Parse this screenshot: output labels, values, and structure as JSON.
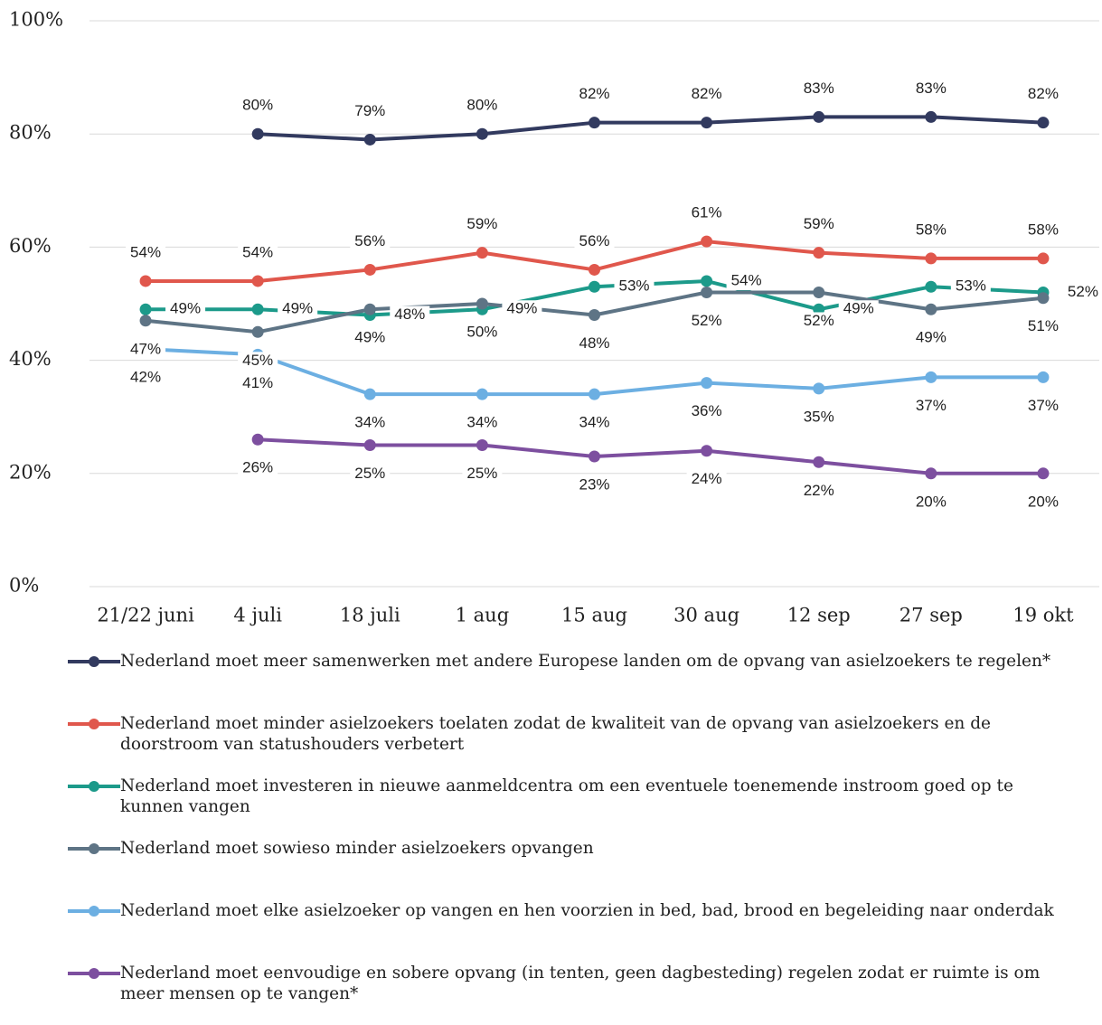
{
  "chart_data": {
    "type": "line",
    "categories": [
      "21/22 juni",
      "4 juli",
      "18 juli",
      "1 aug",
      "15 aug",
      "30 aug",
      "12 sep",
      "27 sep",
      "19 okt"
    ],
    "ylim": [
      0,
      100
    ],
    "yticks": [
      {
        "value": 0,
        "label": "0%"
      },
      {
        "value": 20,
        "label": "20%"
      },
      {
        "value": 40,
        "label": "40%"
      },
      {
        "value": 60,
        "label": "60%"
      },
      {
        "value": 80,
        "label": "80%"
      },
      {
        "value": 100,
        "label": "100%"
      }
    ],
    "grid": true,
    "legend": "bottom",
    "series": [
      {
        "name": "Nederland moet meer samenwerken met andere Europese landen om de opvang van asielzoekers te regelen*",
        "color": "#323a5f",
        "values": [
          null,
          80,
          79,
          80,
          82,
          82,
          83,
          83,
          82
        ],
        "value_labels": [
          null,
          "80%",
          "79%",
          "80%",
          "82%",
          "82%",
          "83%",
          "83%",
          "82%"
        ]
      },
      {
        "name": "Nederland moet minder asielzoekers toelaten zodat de kwaliteit van de opvang van asielzoekers en de doorstroom van statushouders verbetert",
        "color": "#e0574c",
        "values": [
          54,
          54,
          56,
          59,
          56,
          61,
          59,
          58,
          58
        ],
        "value_labels": [
          "54%",
          "54%",
          "56%",
          "59%",
          "56%",
          "61%",
          "59%",
          "58%",
          "58%"
        ]
      },
      {
        "name": "Nederland moet investeren in nieuwe aanmeldcentra om een eventuele toenemende instroom goed op te kunnen vangen",
        "color": "#1c9a8a",
        "values": [
          49,
          49,
          48,
          49,
          53,
          54,
          49,
          53,
          52
        ],
        "value_labels": [
          "49%",
          "49%",
          "48%",
          "49%",
          "53%",
          "54%",
          "49%",
          "53%",
          "52%"
        ]
      },
      {
        "name": "Nederland moet sowieso minder asielzoekers opvangen",
        "color": "#5e7485",
        "values": [
          47,
          45,
          49,
          50,
          48,
          52,
          52,
          49,
          51
        ],
        "value_labels": [
          "47%",
          "45%",
          "49%",
          "50%",
          "48%",
          "52%",
          "52%",
          "49%",
          "51%"
        ]
      },
      {
        "name": "Nederland moet elke asielzoeker op vangen en hen voorzien in bed, bad, brood en begeleiding naar onderdak",
        "color": "#6cafe2",
        "values": [
          42,
          41,
          34,
          34,
          34,
          36,
          35,
          37,
          37
        ],
        "value_labels": [
          "42%",
          "41%",
          "34%",
          "34%",
          "34%",
          "36%",
          "35%",
          "37%",
          "37%"
        ]
      },
      {
        "name": "Nederland moet eenvoudige en sobere opvang (in tenten, geen dagbesteding) regelen zodat er ruimte is om meer mensen op te vangen*",
        "color": "#7d4f9f",
        "values": [
          null,
          26,
          25,
          25,
          23,
          24,
          22,
          20,
          20
        ],
        "value_labels": [
          null,
          "26%",
          "25%",
          "25%",
          "23%",
          "24%",
          "22%",
          "20%",
          "20%"
        ]
      }
    ]
  }
}
